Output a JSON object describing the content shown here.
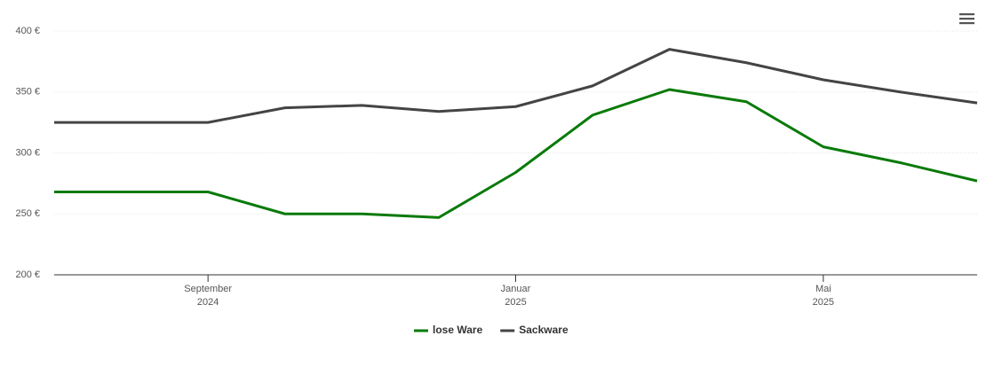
{
  "chart_data": {
    "type": "line",
    "x": [
      "2024-07",
      "2024-08",
      "2024-09",
      "2024-10",
      "2024-11",
      "2024-12",
      "2025-01",
      "2025-02",
      "2025-03",
      "2025-04",
      "2025-05",
      "2025-06",
      "2025-07"
    ],
    "series": [
      {
        "name": "lose Ware",
        "color": "#0a7a0a",
        "values": [
          268,
          268,
          268,
          250,
          250,
          247,
          284,
          331,
          352,
          342,
          305,
          292,
          277
        ]
      },
      {
        "name": "Sackware",
        "color": "#444444",
        "values": [
          325,
          325,
          325,
          337,
          339,
          334,
          338,
          355,
          385,
          374,
          360,
          350,
          341
        ]
      }
    ],
    "xlim": [
      "2024-07",
      "2025-07"
    ],
    "xticks": [
      {
        "value": "2024-09",
        "label": [
          "September",
          "2024"
        ]
      },
      {
        "value": "2025-01",
        "label": [
          "Januar",
          "2025"
        ]
      },
      {
        "value": "2025-05",
        "label": [
          "Mai",
          "2025"
        ]
      }
    ],
    "ylim": [
      200,
      400
    ],
    "yticks": [
      {
        "value": 200,
        "label": "200 €"
      },
      {
        "value": 250,
        "label": "250 €"
      },
      {
        "value": 300,
        "label": "300 €"
      },
      {
        "value": 350,
        "label": "350 €"
      },
      {
        "value": 400,
        "label": "400 €"
      }
    ],
    "grid": true,
    "legend": "bottom"
  }
}
